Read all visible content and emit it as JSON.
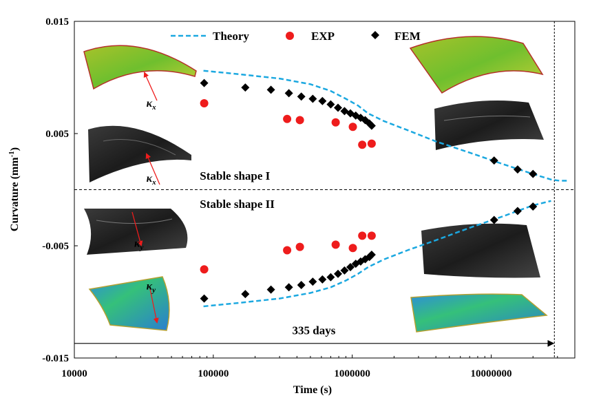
{
  "chart_data": {
    "type": "scatter",
    "xscale": "log",
    "xlabel": "Time (s)",
    "ylabel": "Curvature (mm",
    "ylabel_sup": "-1",
    "ylabel_end": ")",
    "xlim": [
      10000,
      40000000
    ],
    "ylim": [
      -0.015,
      0.015
    ],
    "xticks": [
      {
        "value": 10000,
        "label": "10000"
      },
      {
        "value": 100000,
        "label": "100000"
      },
      {
        "value": 1000000,
        "label": "1000000"
      },
      {
        "value": 10000000,
        "label": "10000000"
      }
    ],
    "yticks": [
      {
        "value": 0.015,
        "label": "0.015"
      },
      {
        "value": 0.005,
        "label": "0.005"
      },
      {
        "value": -0.005,
        "label": "-0.005"
      },
      {
        "value": -0.015,
        "label": "-0.015"
      }
    ],
    "legend": {
      "position": "top",
      "entries": [
        "Theory",
        "EXP",
        "FEM"
      ]
    },
    "series": [
      {
        "name": "Theory",
        "style": "dashed-line",
        "color": "#1ba8e0",
        "x": [
          85000,
          150000,
          300000,
          500000,
          700000,
          900000,
          1100000,
          1300000,
          1700000,
          2500000,
          4000000,
          7000000,
          12000000,
          20000000,
          27000000,
          31000000,
          36000000
        ],
        "y": [
          0.0106,
          0.0103,
          0.0099,
          0.0094,
          0.0088,
          0.0081,
          0.0075,
          0.0068,
          0.0061,
          0.0053,
          0.0043,
          0.0033,
          0.0023,
          0.0014,
          0.0009,
          0.0008,
          0.0008
        ]
      },
      {
        "name": "EXP",
        "style": "circle",
        "color": "#ee1c1c",
        "x": [
          86000,
          340000,
          420000,
          760000,
          1010000,
          1180000,
          1380000
        ],
        "y": [
          0.0077,
          0.0063,
          0.0062,
          0.006,
          0.0056,
          0.004,
          0.0041
        ]
      },
      {
        "name": "FEM",
        "style": "diamond",
        "color": "#000000",
        "x": [
          86000,
          170000,
          260000,
          350000,
          430000,
          520000,
          610000,
          700000,
          790000,
          880000,
          970000,
          1060000,
          1150000,
          1240000,
          1330000,
          1380000,
          10500000,
          15500000,
          20000000
        ],
        "y": [
          0.0095,
          0.0091,
          0.0089,
          0.0086,
          0.0083,
          0.0081,
          0.0079,
          0.0076,
          0.0073,
          0.007,
          0.0068,
          0.0066,
          0.0064,
          0.0062,
          0.0059,
          0.0057,
          0.0026,
          0.0018,
          0.0014
        ]
      },
      {
        "name": "",
        "style": "dashed-line",
        "color": "#1ba8e0",
        "x": [
          85000,
          150000,
          300000,
          500000,
          700000,
          900000,
          1100000,
          1300000,
          1700000,
          2500000,
          4000000,
          7000000,
          12000000,
          20000000,
          27000000
        ],
        "y": [
          -0.0104,
          -0.0101,
          -0.0097,
          -0.0092,
          -0.0087,
          -0.0081,
          -0.0075,
          -0.0069,
          -0.0062,
          -0.0054,
          -0.0045,
          -0.0034,
          -0.0024,
          -0.0014,
          -0.001
        ]
      },
      {
        "name": "",
        "style": "circle",
        "color": "#ee1c1c",
        "x": [
          86000,
          340000,
          420000,
          760000,
          1010000,
          1180000,
          1380000
        ],
        "y": [
          -0.0071,
          -0.0054,
          -0.0051,
          -0.0049,
          -0.0052,
          -0.0041,
          -0.0041
        ]
      },
      {
        "name": "",
        "style": "diamond",
        "color": "#000000",
        "x": [
          86000,
          170000,
          260000,
          350000,
          430000,
          520000,
          610000,
          700000,
          790000,
          880000,
          970000,
          1060000,
          1150000,
          1240000,
          1330000,
          1380000,
          10500000,
          15500000,
          20000000
        ],
        "y": [
          -0.0097,
          -0.0093,
          -0.0089,
          -0.0087,
          -0.0085,
          -0.0082,
          -0.008,
          -0.0078,
          -0.0075,
          -0.0072,
          -0.0069,
          -0.0066,
          -0.0064,
          -0.0062,
          -0.006,
          -0.0058,
          -0.0027,
          -0.0019,
          -0.0015
        ]
      }
    ],
    "reference_lines": [
      {
        "orientation": "horizontal",
        "value": 0.0
      },
      {
        "orientation": "vertical",
        "value": 28500000
      }
    ],
    "annotations": [
      {
        "text": "Stable shape I",
        "x": 80000,
        "y": 0.00125
      },
      {
        "text": "Stable shape II",
        "x": 80000,
        "y": -0.00125
      },
      {
        "text": "335 days",
        "x": 370000,
        "y": -0.0125
      }
    ],
    "duration_arrow": {
      "x_start": 10000,
      "x_end": 28500000,
      "y": -0.0137
    },
    "kappa_labels": [
      {
        "base": "κ",
        "sub": "x",
        "x": 33000,
        "y": 0.0074
      },
      {
        "base": "κ",
        "sub": "x",
        "x": 33000,
        "y": 0.0007
      },
      {
        "base": "κ",
        "sub": "y",
        "x": 27000,
        "y": -0.0051
      },
      {
        "base": "κ",
        "sub": "y",
        "x": 33000,
        "y": -0.0089
      }
    ]
  }
}
